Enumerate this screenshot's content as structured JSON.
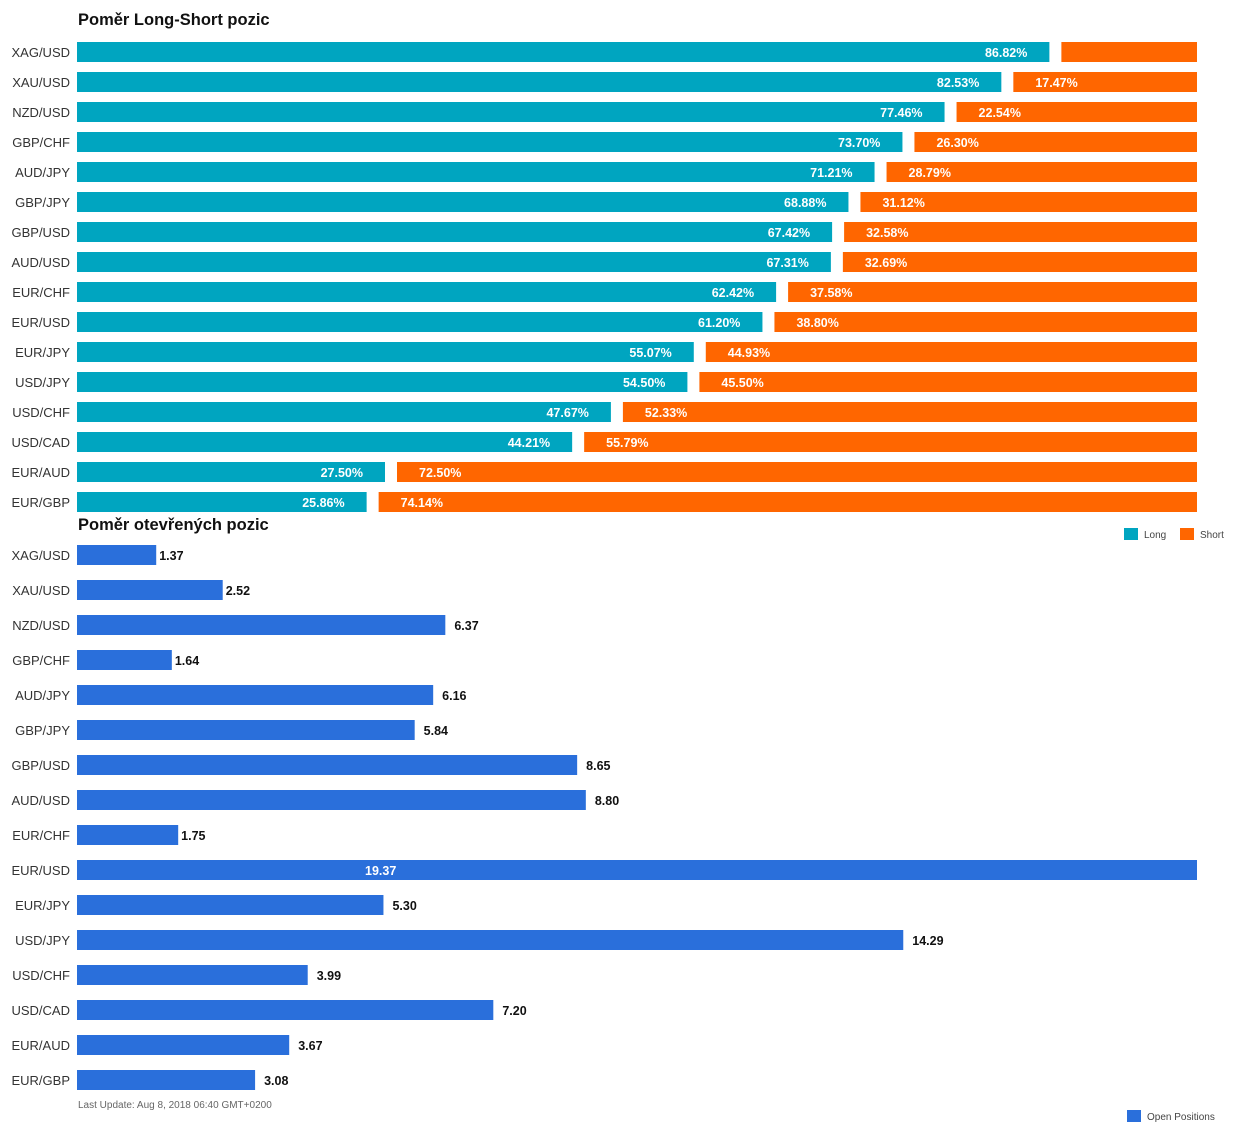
{
  "footer": "Last Update: Aug 8, 2018 06:40 GMT+0200",
  "chart_data": [
    {
      "type": "bar",
      "stacked": true,
      "orientation": "horizontal",
      "title": "Poměr Long-Short pozic",
      "categories": [
        "XAG/USD",
        "XAU/USD",
        "NZD/USD",
        "GBP/CHF",
        "AUD/JPY",
        "GBP/JPY",
        "GBP/USD",
        "AUD/USD",
        "EUR/CHF",
        "EUR/USD",
        "EUR/JPY",
        "USD/JPY",
        "USD/CHF",
        "USD/CAD",
        "EUR/AUD",
        "EUR/GBP"
      ],
      "series": [
        {
          "name": "Long",
          "color": "#00a5c0",
          "values": [
            86.82,
            82.53,
            77.46,
            73.7,
            71.21,
            68.88,
            67.42,
            67.31,
            62.42,
            61.2,
            55.07,
            54.5,
            47.67,
            44.21,
            27.5,
            25.86
          ],
          "labels": [
            "86.82%",
            "82.53%",
            "77.46%",
            "73.70%",
            "71.21%",
            "68.88%",
            "67.42%",
            "67.31%",
            "62.42%",
            "61.20%",
            "55.07%",
            "54.50%",
            "47.67%",
            "44.21%",
            "27.50%",
            "25.86%"
          ]
        },
        {
          "name": "Short",
          "color": "#ff6600",
          "values": [
            13.18,
            17.47,
            22.54,
            26.3,
            28.79,
            31.12,
            32.58,
            32.69,
            37.58,
            38.8,
            44.93,
            45.5,
            52.33,
            55.79,
            72.5,
            74.14
          ],
          "labels": [
            "",
            "17.47%",
            "22.54%",
            "26.30%",
            "28.79%",
            "31.12%",
            "32.58%",
            "32.69%",
            "37.58%",
            "38.80%",
            "44.93%",
            "45.50%",
            "52.33%",
            "55.79%",
            "72.50%",
            "74.14%"
          ]
        }
      ],
      "legend_position": "bottom-right"
    },
    {
      "type": "bar",
      "orientation": "horizontal",
      "title": "Poměr otevřených pozic",
      "categories": [
        "XAG/USD",
        "XAU/USD",
        "NZD/USD",
        "GBP/CHF",
        "AUD/JPY",
        "GBP/JPY",
        "GBP/USD",
        "AUD/USD",
        "EUR/CHF",
        "EUR/USD",
        "EUR/JPY",
        "USD/JPY",
        "USD/CHF",
        "USD/CAD",
        "EUR/AUD",
        "EUR/GBP"
      ],
      "series": [
        {
          "name": "Open Positions",
          "color": "#2a6fdb",
          "values": [
            1.37,
            2.52,
            6.37,
            1.64,
            6.16,
            5.84,
            8.65,
            8.8,
            1.75,
            19.37,
            5.3,
            14.29,
            3.99,
            7.2,
            3.67,
            3.08
          ],
          "labels": [
            "1.37",
            "2.52",
            "6.37",
            "1.64",
            "6.16",
            "5.84",
            "8.65",
            "8.80",
            "1.75",
            "19.37",
            "5.30",
            "14.29",
            "3.99",
            "7.20",
            "3.67",
            "3.08"
          ]
        }
      ],
      "xlim": [
        0,
        19.37
      ],
      "legend_position": "bottom-right"
    }
  ]
}
